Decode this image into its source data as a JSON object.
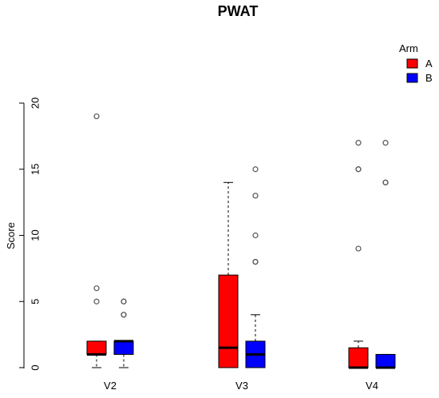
{
  "chart_data": {
    "type": "boxplot",
    "title": "PWAT",
    "xlabel": "",
    "ylabel": "Score",
    "ylim": [
      0,
      20
    ],
    "yticks": [
      0,
      5,
      10,
      15,
      20
    ],
    "categories": [
      "V2",
      "V3",
      "V4"
    ],
    "legend": {
      "title": "Arm",
      "position": "top-right"
    },
    "series": [
      {
        "name": "A",
        "color": "#ff0000",
        "boxes": [
          {
            "category": "V2",
            "whisker_low": 0,
            "q1": 1,
            "median": 1,
            "q3": 2,
            "whisker_high": 2,
            "outliers": [
              5,
              6,
              19
            ]
          },
          {
            "category": "V3",
            "whisker_low": 0,
            "q1": 0,
            "median": 1.5,
            "q3": 7,
            "whisker_high": 14,
            "outliers": []
          },
          {
            "category": "V4",
            "whisker_low": 0,
            "q1": 0,
            "median": 0,
            "q3": 1.5,
            "whisker_high": 2,
            "outliers": [
              9,
              15,
              15,
              17
            ]
          }
        ]
      },
      {
        "name": "B",
        "color": "#0000ff",
        "boxes": [
          {
            "category": "V2",
            "whisker_low": 0,
            "q1": 1,
            "median": 2,
            "q3": 2,
            "whisker_high": 2,
            "outliers": [
              4,
              4,
              5,
              5
            ]
          },
          {
            "category": "V3",
            "whisker_low": 0,
            "q1": 0,
            "median": 1,
            "q3": 2,
            "whisker_high": 4,
            "outliers": [
              8,
              8,
              10,
              13,
              15
            ]
          },
          {
            "category": "V4",
            "whisker_low": 0,
            "q1": 0,
            "median": 0,
            "q3": 1,
            "whisker_high": 1,
            "outliers": [
              14,
              14,
              17
            ]
          }
        ]
      }
    ]
  }
}
